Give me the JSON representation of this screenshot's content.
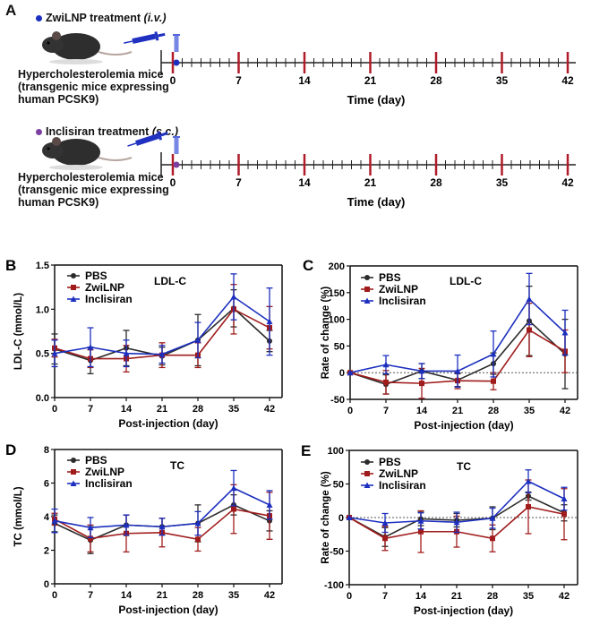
{
  "panel_a": {
    "label": "A",
    "timelines": [
      {
        "treatment": "ZwiLNP treatment",
        "route": "(i.v.)",
        "marker_color": "#1c2fbf",
        "mouse_line1": "Hypercholesterolemia mice",
        "mouse_line2": "(transgenic mice expressing",
        "mouse_line3": "human PCSK9)",
        "axis_label": "Time (day)",
        "ticks": [
          0,
          7,
          14,
          21,
          28,
          35,
          42
        ],
        "injection_day": 0
      },
      {
        "treatment": "Inclisiran treatment",
        "route": "(s.c.)",
        "marker_color": "#7a3fa0",
        "mouse_line1": "Hypercholesterolemia mice",
        "mouse_line2": "(transgenic mice expressing",
        "mouse_line3": "human PCSK9)",
        "axis_label": "Time (day)",
        "ticks": [
          0,
          7,
          14,
          21,
          28,
          35,
          42
        ],
        "injection_day": 0
      }
    ],
    "major_tick_color": "#b01c2a"
  },
  "chart_data": [
    {
      "panel": "B",
      "type": "line",
      "title": "LDL-C",
      "xlabel": "Post-injection (day)",
      "ylabel": "LDL-C (mmol/L)",
      "x": [
        0,
        7,
        14,
        21,
        28,
        35,
        42
      ],
      "ylim": [
        0,
        1.5
      ],
      "yticks": [
        0.0,
        0.5,
        1.0,
        1.5
      ],
      "ytick_labels": [
        "0.0",
        "0.5",
        "1.0",
        "1.5"
      ],
      "reference_line": null,
      "legend": "top-left",
      "grid": false,
      "series": [
        {
          "name": "PBS",
          "color": "#2b2b2b",
          "marker": "circle",
          "values": [
            0.55,
            0.42,
            0.56,
            0.47,
            0.65,
            1.01,
            0.64
          ],
          "errors": [
            0.17,
            0.15,
            0.2,
            0.1,
            0.29,
            0.21,
            0.12
          ]
        },
        {
          "name": "ZwiLNP",
          "color": "#a01c1c",
          "marker": "square",
          "values": [
            0.56,
            0.44,
            0.44,
            0.48,
            0.48,
            1.0,
            0.79
          ],
          "errors": [
            0.1,
            0.1,
            0.15,
            0.14,
            0.14,
            0.28,
            0.24
          ]
        },
        {
          "name": "Inclisiran",
          "color": "#1c2fbf",
          "marker": "triangle",
          "values": [
            0.5,
            0.57,
            0.5,
            0.49,
            0.65,
            1.14,
            0.86
          ],
          "errors": [
            0.15,
            0.22,
            0.15,
            0.1,
            0.2,
            0.26,
            0.38
          ]
        }
      ]
    },
    {
      "panel": "C",
      "type": "line",
      "title": "LDL-C",
      "xlabel": "Post-injection (day)",
      "ylabel": "Rate of change (%)",
      "x": [
        0,
        7,
        14,
        21,
        28,
        35,
        42
      ],
      "ylim": [
        -50,
        200
      ],
      "yticks": [
        -50,
        0,
        50,
        100,
        150,
        200
      ],
      "ytick_labels": [
        "-50",
        "0",
        "50",
        "100",
        "150",
        "200"
      ],
      "reference_line": 0,
      "legend": "top-left",
      "grid": false,
      "series": [
        {
          "name": "PBS",
          "color": "#2b2b2b",
          "marker": "circle",
          "values": [
            0,
            -22,
            3,
            -14,
            17,
            97,
            35
          ],
          "errors": [
            0,
            18,
            14,
            12,
            20,
            65,
            65
          ]
        },
        {
          "name": "ZwiLNP",
          "color": "#a01c1c",
          "marker": "square",
          "values": [
            0,
            -18,
            -20,
            -15,
            -16,
            80,
            40
          ],
          "errors": [
            0,
            22,
            28,
            15,
            16,
            50,
            40
          ]
        },
        {
          "name": "Inclisiran",
          "color": "#1c2fbf",
          "marker": "triangle",
          "values": [
            0,
            15,
            3,
            3,
            35,
            138,
            75
          ],
          "errors": [
            0,
            17,
            14,
            30,
            43,
            48,
            42
          ]
        }
      ]
    },
    {
      "panel": "D",
      "type": "line",
      "title": "TC",
      "xlabel": "Post-injection (day)",
      "ylabel": "TC (mmol/L)",
      "x": [
        0,
        7,
        14,
        21,
        28,
        35,
        42
      ],
      "ylim": [
        0,
        8
      ],
      "yticks": [
        0,
        2,
        4,
        6,
        8
      ],
      "ytick_labels": [
        "0",
        "2",
        "4",
        "6",
        "8"
      ],
      "reference_line": null,
      "legend": "top-left",
      "grid": false,
      "series": [
        {
          "name": "PBS",
          "color": "#2b2b2b",
          "marker": "circle",
          "values": [
            3.6,
            2.6,
            3.5,
            3.4,
            3.6,
            4.7,
            3.75
          ],
          "errors": [
            0.5,
            0.8,
            0.6,
            0.5,
            1.1,
            0.6,
            0.6
          ]
        },
        {
          "name": "ZwiLNP",
          "color": "#a01c1c",
          "marker": "square",
          "values": [
            3.85,
            2.7,
            3.0,
            3.05,
            2.65,
            4.45,
            4.05
          ],
          "errors": [
            0.35,
            0.8,
            1.1,
            0.85,
            0.7,
            1.45,
            1.4
          ]
        },
        {
          "name": "Inclisiran",
          "color": "#1c2fbf",
          "marker": "triangle",
          "values": [
            3.75,
            3.35,
            3.5,
            3.4,
            3.6,
            5.7,
            4.7
          ],
          "errors": [
            0.7,
            0.6,
            0.6,
            0.5,
            0.7,
            1.05,
            0.85
          ]
        }
      ]
    },
    {
      "panel": "E",
      "type": "line",
      "title": "TC",
      "xlabel": "Post-injection (day)",
      "ylabel": "Rate of change (%)",
      "x": [
        0,
        7,
        14,
        21,
        28,
        35,
        42
      ],
      "ylim": [
        -100,
        100
      ],
      "yticks": [
        -100,
        -50,
        0,
        50,
        100
      ],
      "ytick_labels": [
        "-100",
        "-50",
        "0",
        "50",
        "100"
      ],
      "reference_line": 0,
      "legend": "top-left",
      "grid": false,
      "series": [
        {
          "name": "PBS",
          "color": "#2b2b2b",
          "marker": "circle",
          "values": [
            0,
            -29,
            -2,
            -4,
            -1,
            32,
            7
          ],
          "errors": [
            0,
            14,
            10,
            10,
            17,
            6,
            12
          ]
        },
        {
          "name": "ZwiLNP",
          "color": "#a01c1c",
          "marker": "square",
          "values": [
            0,
            -31,
            -21,
            -21,
            -31,
            16,
            5
          ],
          "errors": [
            0,
            18,
            31,
            23,
            20,
            40,
            38
          ]
        },
        {
          "name": "Inclisiran",
          "color": "#1c2fbf",
          "marker": "triangle",
          "values": [
            0,
            -8,
            -5,
            -7,
            -1,
            54,
            28
          ],
          "errors": [
            0,
            14,
            12,
            15,
            15,
            17,
            17
          ]
        }
      ]
    }
  ]
}
